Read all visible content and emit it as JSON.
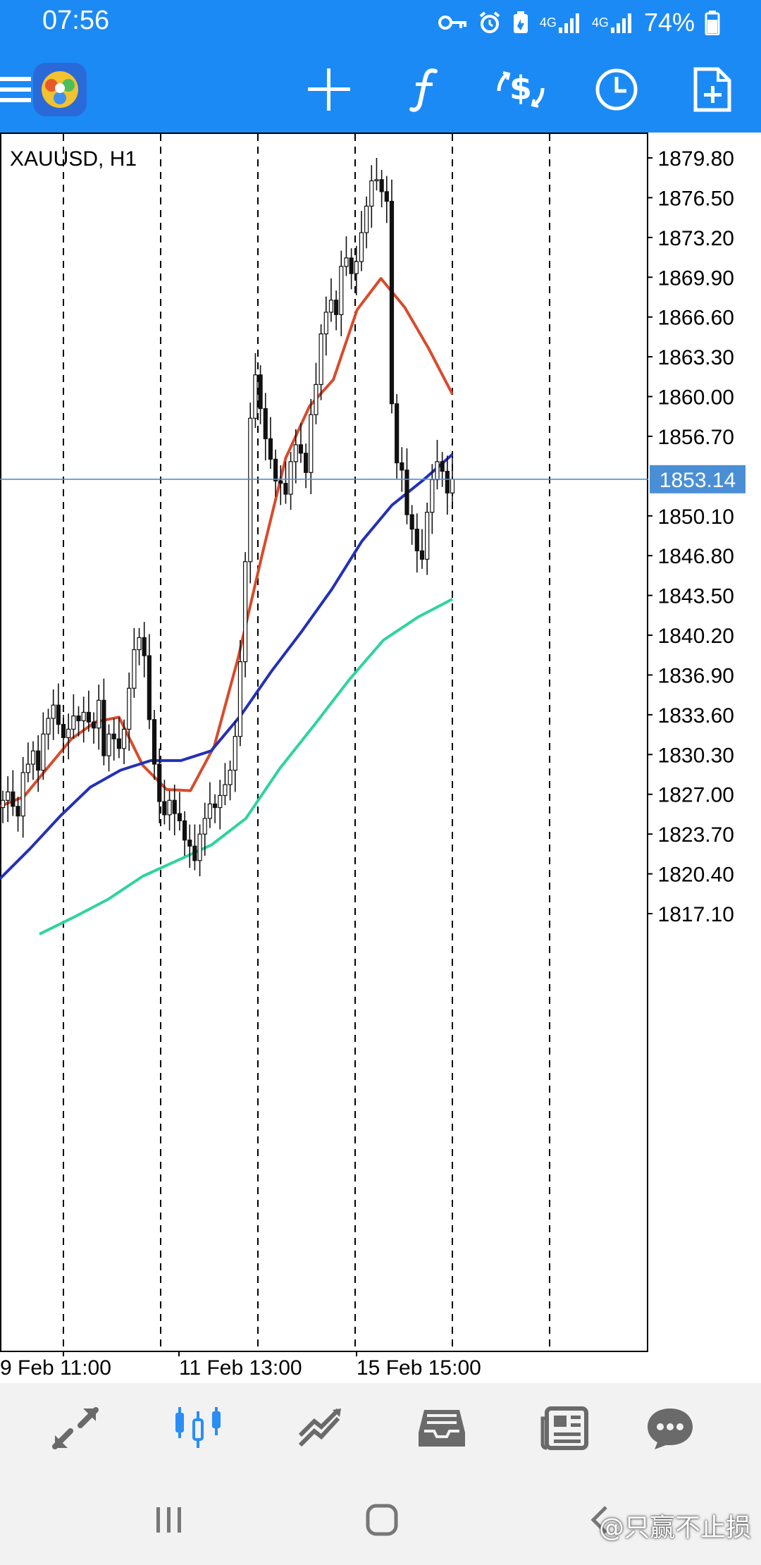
{
  "status_bar": {
    "time": "07:56",
    "network_1": "4G",
    "network_2": "4G",
    "battery": "74%"
  },
  "toolbar": {
    "icons": [
      "menu-icon",
      "app-logo-icon",
      "crosshair-icon",
      "indicators-icon",
      "trade-icon",
      "period-icon",
      "new-order-icon"
    ]
  },
  "chart_data": {
    "type": "candlestick",
    "title": "XAUUSD, H1",
    "current_price": "1853.14",
    "y_ticks": [
      "1879.80",
      "1876.50",
      "1873.20",
      "1869.90",
      "1866.60",
      "1863.30",
      "1860.00",
      "1856.70",
      "1850.10",
      "1846.80",
      "1843.50",
      "1840.20",
      "1836.90",
      "1833.60",
      "1830.30",
      "1827.00",
      "1823.70",
      "1820.40",
      "1817.10"
    ],
    "x_ticks": [
      "9 Feb 11:00",
      "11 Feb 13:00",
      "15 Feb 15:00"
    ],
    "grid": "vertical dashed lines",
    "series": [
      {
        "name": "",
        "kind": "close",
        "color": "#111111",
        "values": [
          1826.5,
          1827.2,
          1826.0,
          1825.2,
          1828.8,
          1829.5,
          1830.6,
          1829.0,
          1832.0,
          1833.3,
          1834.4,
          1832.8,
          1831.7,
          1832.4,
          1833.5,
          1833.1,
          1833.8,
          1833.0,
          1832.5,
          1834.8,
          1830.2,
          1832.0,
          1831.6,
          1830.8,
          1832.4,
          1835.8,
          1839.0,
          1840.0,
          1838.5,
          1833.2,
          1829.5,
          1826.4,
          1825.3,
          1826.5,
          1825.4,
          1824.8,
          1823.2,
          1822.7,
          1821.5,
          1823.7,
          1825.0,
          1826.2,
          1825.9,
          1826.9,
          1827.8,
          1829.0,
          1831.8,
          1838.0,
          1846.3,
          1858.2,
          1861.8,
          1859.0,
          1856.5,
          1854.8,
          1853.0,
          1852.8,
          1851.9,
          1854.6,
          1856.0,
          1855.3,
          1853.7,
          1858.5,
          1861.0,
          1865.2,
          1867.0,
          1868.0,
          1866.8,
          1870.8,
          1871.5,
          1870.2,
          1871.2,
          1873.6,
          1875.8,
          1877.9,
          1878.0,
          1877.0,
          1876.2,
          1859.4,
          1854.5,
          1853.9,
          1850.2,
          1849.0,
          1847.2,
          1846.5,
          1850.4,
          1853.1,
          1854.6,
          1853.8,
          1852.0,
          1853.14
        ]
      },
      {
        "name": "",
        "kind": "moving-average",
        "color": "#d84b2c",
        "values": [
          1826.0,
          1826.8,
          1829.2,
          1831.6,
          1833.0,
          1833.4,
          1829.4,
          1827.4,
          1827.3,
          1831.0,
          1838.3,
          1846.8,
          1854.9,
          1859.2,
          1861.4,
          1867.2,
          1869.8,
          1867.4,
          1864.0,
          1860.2
        ]
      },
      {
        "name": "",
        "kind": "moving-average",
        "color": "#2330b8",
        "values": [
          1820.0,
          1822.5,
          1825.2,
          1827.6,
          1829.0,
          1829.8,
          1829.8,
          1830.6,
          1833.6,
          1837.2,
          1840.5,
          1844.0,
          1848.0,
          1851.0,
          1853.0,
          1855.2
        ]
      },
      {
        "name": "",
        "kind": "moving-average",
        "color": "#2fd3a0",
        "values": [
          1815.4,
          1816.8,
          1818.3,
          1820.2,
          1821.5,
          1822.8,
          1825.0,
          1829.2,
          1832.8,
          1836.5,
          1839.8,
          1841.7,
          1843.2
        ]
      }
    ]
  },
  "bottom_nav": {
    "items": [
      "quotes-icon",
      "charts-icon",
      "trade-icon",
      "history-icon",
      "news-icon",
      "chat-icon"
    ],
    "active": "charts-icon"
  },
  "watermark": "@只赢不止损"
}
